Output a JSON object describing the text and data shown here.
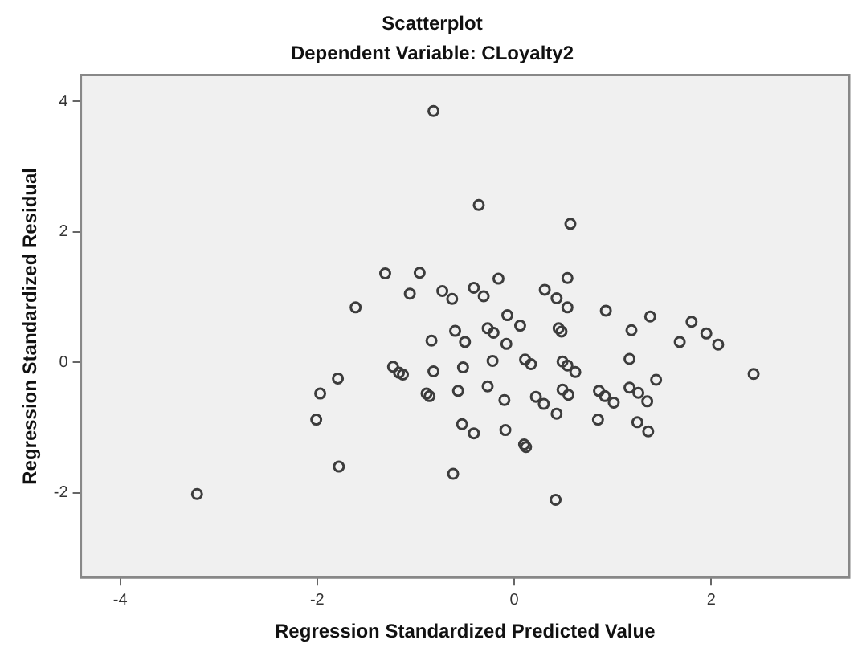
{
  "chart_data": {
    "type": "scatter",
    "title": "Scatterplot",
    "subtitle": "Dependent Variable: CLoyalty2",
    "xlabel": "Regression Standardized Predicted Value",
    "ylabel": "Regression Standardized Residual",
    "xlim": [
      -4.4,
      3.4
    ],
    "xticks": [
      -4,
      -2,
      0,
      2
    ],
    "ylim": [
      -3.3,
      4.4
    ],
    "yticks": [
      -2,
      0,
      2,
      4
    ],
    "marker": "circle",
    "series": [
      {
        "color": "#3c3c3c",
        "x": [
          -0.82,
          -0.36,
          0.57,
          -1.31,
          -0.96,
          -1.06,
          -0.73,
          -0.63,
          -1.61,
          -0.84,
          -0.6,
          -1.23,
          -1.17,
          -1.13,
          -0.82,
          -1.79,
          -1.97,
          -0.89,
          -0.86,
          -0.57,
          -2.01,
          -0.53,
          -1.78,
          -0.62,
          -3.22,
          -0.5,
          -0.52,
          -0.41,
          -0.31,
          -0.16,
          0.31,
          0.43,
          0.54,
          0.54,
          0.93,
          1.38,
          1.8,
          1.95,
          2.07,
          1.68,
          1.19,
          -0.07,
          0.06,
          -0.27,
          -0.21,
          0.45,
          0.48,
          -0.08,
          1.17,
          2.43,
          -0.22,
          0.11,
          0.17,
          0.49,
          0.54,
          0.62,
          1.44,
          -0.27,
          -0.1,
          0.22,
          0.3,
          0.49,
          0.55,
          0.86,
          0.92,
          1.01,
          1.17,
          1.26,
          1.35,
          0.43,
          0.85,
          1.25,
          1.36,
          -0.41,
          -0.09,
          0.1,
          0.12,
          0.42
        ],
        "values": [
          3.85,
          2.41,
          2.12,
          1.36,
          1.37,
          1.05,
          1.09,
          0.97,
          0.84,
          0.33,
          0.48,
          -0.07,
          -0.16,
          -0.19,
          -0.14,
          -0.25,
          -0.48,
          -0.48,
          -0.52,
          -0.44,
          -0.88,
          -0.95,
          -1.6,
          -1.71,
          -2.02,
          0.31,
          -0.08,
          1.14,
          1.01,
          1.28,
          1.11,
          0.98,
          1.29,
          0.84,
          0.79,
          0.7,
          0.62,
          0.44,
          0.27,
          0.31,
          0.49,
          0.72,
          0.56,
          0.52,
          0.45,
          0.52,
          0.47,
          0.28,
          0.05,
          -0.18,
          0.02,
          0.04,
          -0.03,
          0.01,
          -0.05,
          -0.15,
          -0.27,
          -0.37,
          -0.58,
          -0.53,
          -0.64,
          -0.42,
          -0.5,
          -0.44,
          -0.52,
          -0.62,
          -0.39,
          -0.47,
          -0.6,
          -0.79,
          -0.88,
          -0.92,
          -1.06,
          -1.09,
          -1.04,
          -1.26,
          -1.3,
          -2.11
        ]
      }
    ]
  }
}
